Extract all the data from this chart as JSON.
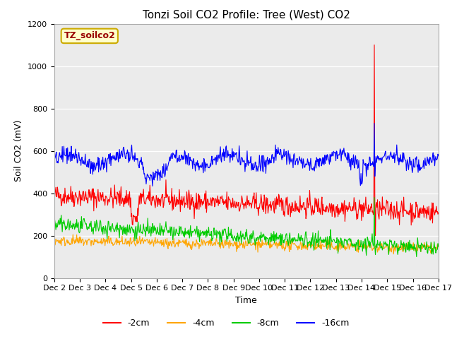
{
  "title": "Tonzi Soil CO2 Profile: Tree (West) CO2",
  "xlabel": "Time",
  "ylabel": "Soil CO2 (mV)",
  "xlim": [
    0,
    15
  ],
  "ylim": [
    0,
    1200
  ],
  "yticks": [
    0,
    200,
    400,
    600,
    800,
    1000,
    1200
  ],
  "xtick_labels": [
    "Dec 2",
    "Dec 3",
    "Dec 4",
    "Dec 5",
    "Dec 6",
    "Dec 7",
    "Dec 8",
    "Dec 9",
    "Dec 10",
    "Dec 11",
    "Dec 12",
    "Dec 13",
    "Dec 14",
    "Dec 15",
    "Dec 16",
    "Dec 17"
  ],
  "fig_bg": "#ffffff",
  "ax_bg": "#ebebeb",
  "grid_color": "#ffffff",
  "legend_box_fc": "#ffffcc",
  "legend_box_ec": "#ccaa00",
  "legend_text": "TZ_soilco2",
  "legend_text_color": "#990000",
  "title_fontsize": 11,
  "axis_label_fontsize": 9,
  "tick_fontsize": 8,
  "series": [
    {
      "label": "-2cm",
      "color": "#ff0000"
    },
    {
      "label": "-4cm",
      "color": "#ffa500"
    },
    {
      "label": "-8cm",
      "color": "#00cc00"
    },
    {
      "label": "-16cm",
      "color": "#0000ff"
    }
  ]
}
